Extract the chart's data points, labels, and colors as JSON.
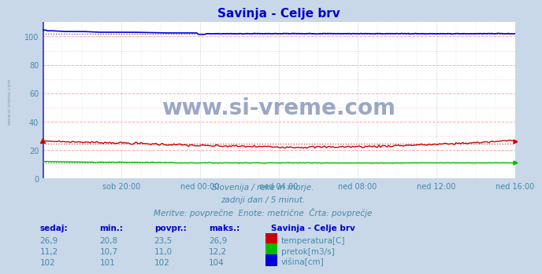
{
  "title": "Savinja - Celje brv",
  "title_color": "#0000cc",
  "bg_color": "#c8d8e8",
  "plot_bg_color": "#ffffff",
  "grid_h_color": "#ffaaaa",
  "grid_v_color": "#aaaacc",
  "xlabel_ticks": [
    "sob 20:00",
    "ned 00:00",
    "ned 04:00",
    "ned 08:00",
    "ned 12:00",
    "ned 16:00"
  ],
  "ylim": [
    0,
    110
  ],
  "yticks": [
    0,
    20,
    40,
    60,
    80,
    100
  ],
  "subtitle1": "Slovenija / reke in morje.",
  "subtitle2": "zadnji dan / 5 minut.",
  "subtitle3": "Meritve: povprečne  Enote: metrične  Črta: povprečje",
  "subtitle_color": "#4488aa",
  "watermark": "www.si-vreme.com",
  "watermark_color": "#8899bb",
  "side_text": "www.si-vreme.com",
  "temp_color": "#cc0000",
  "temp_avg_color": "#dd4444",
  "flow_color": "#00bb00",
  "flow_avg_color": "#00bb00",
  "height_color": "#0000dd",
  "height_avg_color": "#4444ff",
  "legend_title": "Savinja - Celje brv",
  "legend_items": [
    {
      "label": "temperatura[C]",
      "color": "#cc0000"
    },
    {
      "label": "pretok[m3/s]",
      "color": "#00bb00"
    },
    {
      "label": "višina[cm]",
      "color": "#0000dd"
    }
  ],
  "table_headers": [
    "sedaj:",
    "min.:",
    "povpr.:",
    "maks.:"
  ],
  "table_data": [
    [
      "26,9",
      "20,8",
      "23,5",
      "26,9"
    ],
    [
      "11,2",
      "10,7",
      "11,0",
      "12,2"
    ],
    [
      "102",
      "101",
      "102",
      "104"
    ]
  ],
  "n_points": 289
}
